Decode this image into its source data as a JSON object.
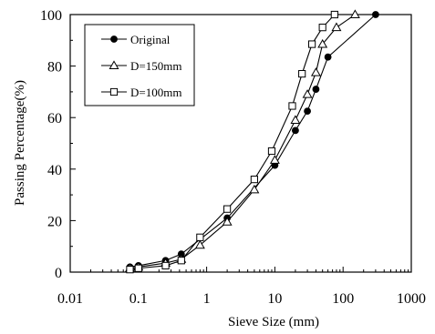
{
  "chart_data": {
    "type": "line",
    "xlabel": "Sieve Size (mm)",
    "ylabel": "Passing Percentage(%)",
    "xscale": "log",
    "xlim": [
      0.01,
      1000
    ],
    "ylim": [
      0,
      100
    ],
    "x_ticks": [
      0.01,
      0.1,
      1,
      10,
      100,
      1000
    ],
    "x_tick_labels": [
      "0.01",
      "0.1",
      "1",
      "10",
      "100",
      "1000"
    ],
    "y_ticks": [
      0,
      20,
      40,
      60,
      80,
      100
    ],
    "y_tick_labels": [
      "0",
      "20",
      "40",
      "60",
      "80",
      "100"
    ],
    "grid": false,
    "legend_position": "top-left",
    "series": [
      {
        "name": "Original",
        "marker": "filled-circle",
        "x": [
          0.075,
          0.1,
          0.25,
          0.425,
          2,
          10,
          20,
          30,
          40,
          60,
          300
        ],
        "y": [
          2.0,
          2.5,
          4.5,
          7.0,
          21.0,
          41.5,
          55.0,
          62.5,
          71.0,
          83.5,
          100
        ]
      },
      {
        "name": "D=150mm",
        "marker": "open-triangle",
        "x": [
          0.075,
          0.1,
          0.25,
          0.425,
          0.8,
          2,
          5,
          10,
          20,
          30,
          40,
          50,
          80,
          150
        ],
        "y": [
          1.5,
          2.0,
          3.5,
          5.0,
          10.5,
          19.5,
          32.0,
          43.5,
          59.0,
          69.0,
          77.5,
          88.5,
          95.0,
          100
        ]
      },
      {
        "name": "D=100mm",
        "marker": "open-square",
        "x": [
          0.075,
          0.1,
          0.25,
          0.425,
          0.8,
          2,
          5,
          9,
          18,
          25,
          35,
          50,
          75
        ],
        "y": [
          1.0,
          1.5,
          2.5,
          4.5,
          13.5,
          24.5,
          36.0,
          47.0,
          64.5,
          77.0,
          88.5,
          95.0,
          100
        ]
      }
    ]
  }
}
